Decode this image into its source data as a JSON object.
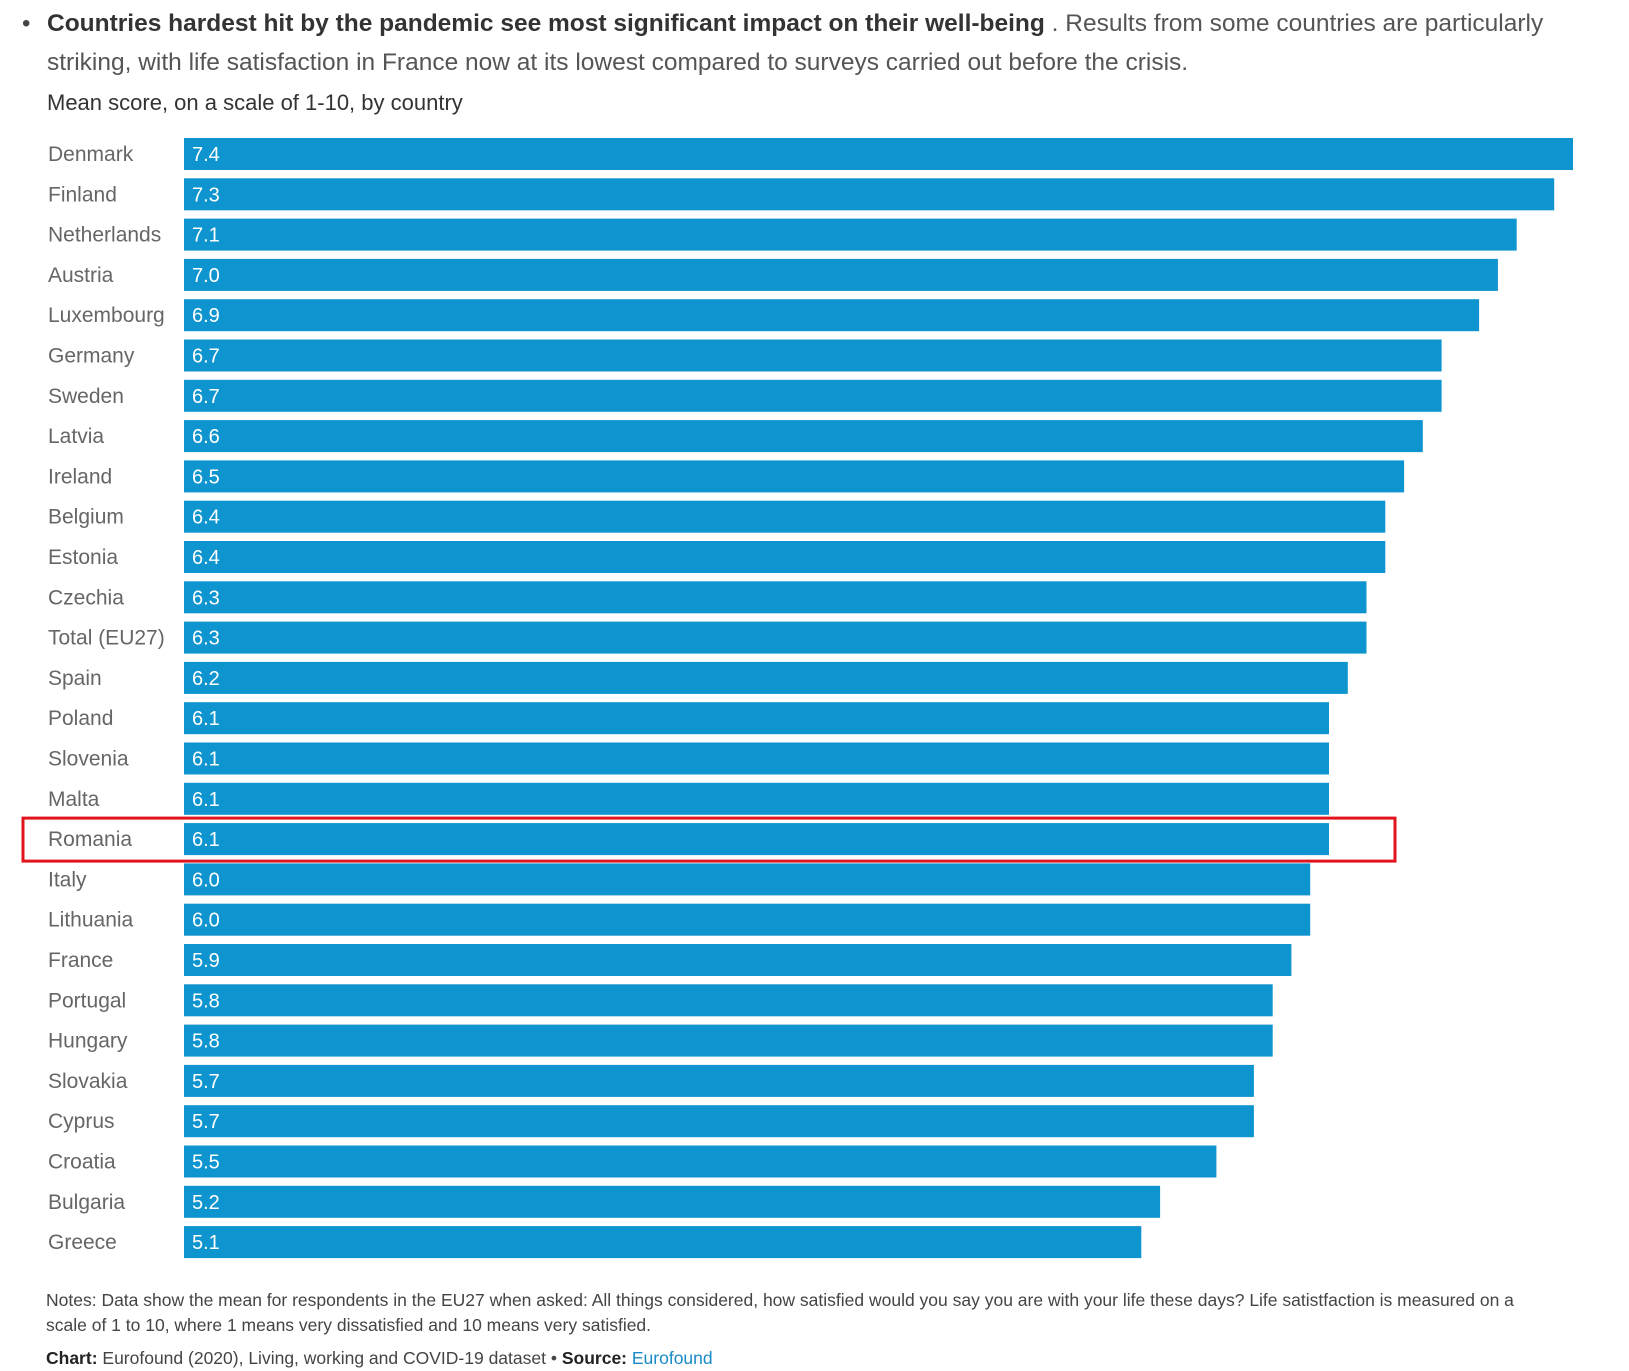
{
  "intro": {
    "bold": "Countries hardest hit by the pandemic see most significant impact on their well-being",
    "rest": " . Results from some countries are particularly striking, with life satisfaction in France now at its lowest compared to surveys carried out before the crisis."
  },
  "chart_data": {
    "type": "bar",
    "orientation": "horizontal",
    "subtitle": "Mean score, on a scale of 1-10, by country",
    "categories": [
      "Denmark",
      "Finland",
      "Netherlands",
      "Austria",
      "Luxembourg",
      "Germany",
      "Sweden",
      "Latvia",
      "Ireland",
      "Belgium",
      "Estonia",
      "Czechia",
      "Total (EU27)",
      "Spain",
      "Poland",
      "Slovenia",
      "Malta",
      "Romania",
      "Italy",
      "Lithuania",
      "France",
      "Portugal",
      "Hungary",
      "Slovakia",
      "Cyprus",
      "Croatia",
      "Bulgaria",
      "Greece"
    ],
    "values": [
      7.4,
      7.3,
      7.1,
      7.0,
      6.9,
      6.7,
      6.7,
      6.6,
      6.5,
      6.4,
      6.4,
      6.3,
      6.3,
      6.2,
      6.1,
      6.1,
      6.1,
      6.1,
      6.0,
      6.0,
      5.9,
      5.8,
      5.8,
      5.7,
      5.7,
      5.5,
      5.2,
      5.1
    ],
    "value_labels": [
      "7.4",
      "7.3",
      "7.1",
      "7.0",
      "6.9",
      "6.7",
      "6.7",
      "6.6",
      "6.5",
      "6.4",
      "6.4",
      "6.3",
      "6.3",
      "6.2",
      "6.1",
      "6.1",
      "6.1",
      "6.1",
      "6.0",
      "6.0",
      "5.9",
      "5.8",
      "5.8",
      "5.7",
      "5.7",
      "5.5",
      "5.2",
      "5.1"
    ],
    "highlighted_category": "Romania",
    "bar_color": "#0e94cf",
    "highlight_color": "#e0141c",
    "xlim": [
      0,
      7.4
    ],
    "grid": false,
    "legend": "none"
  },
  "notes": "Notes: Data show the mean for respondents in the EU27 when asked: All things considered, how satisfied would you say you are with your life these days? Life satistfaction is measured on a scale of 1 to 10, where 1 means very dissatisfied and 10 means very satisfied.",
  "credit": {
    "chart_label": "Chart:",
    "chart_text": " Eurofound (2020), Living, working and COVID-19 dataset",
    "separator": " • ",
    "source_label": "Source:",
    "source_link": "Eurofound"
  }
}
